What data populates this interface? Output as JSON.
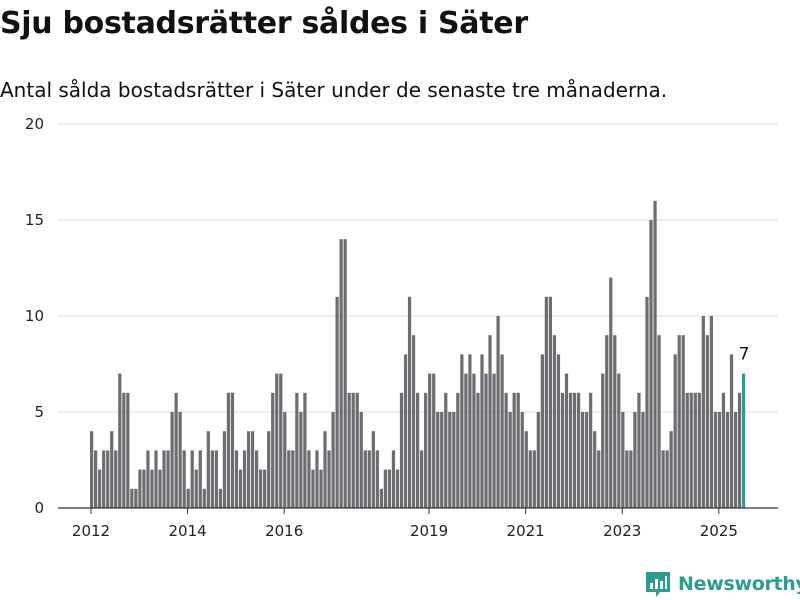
{
  "title": "Sju bostadsrätter såldes i Säter",
  "subtitle": "Antal sålda bostadsrätter i Säter under de senaste tre månaderna.",
  "brand": {
    "name": "Newsworthy",
    "color": "#2a9d8f",
    "icon": "newsworthy-logo-icon"
  },
  "colors": {
    "bar": "#6d6c70",
    "highlight": "#2a9d8f",
    "grid": "#dddddd",
    "axis": "#333333"
  },
  "chart_data": {
    "type": "bar",
    "title": "Sju bostadsrätter såldes i Säter",
    "subtitle": "Antal sålda bostadsrätter i Säter under de senaste tre månaderna.",
    "xlabel": "",
    "ylabel": "",
    "ylim": [
      0,
      20
    ],
    "yticks": [
      0,
      5,
      10,
      15,
      20
    ],
    "xticks": [
      "2012",
      "2014",
      "2016",
      "2019",
      "2021",
      "2023",
      "2025"
    ],
    "grid": "horizontal",
    "x_start": "2012-01",
    "x_end": "2025-07",
    "highlight_index": 162,
    "last_label": "7",
    "values": [
      4,
      3,
      2,
      3,
      3,
      4,
      3,
      7,
      6,
      6,
      1,
      1,
      2,
      2,
      3,
      2,
      3,
      2,
      3,
      3,
      5,
      6,
      5,
      3,
      1,
      3,
      2,
      3,
      1,
      4,
      3,
      3,
      1,
      4,
      6,
      6,
      3,
      2,
      3,
      4,
      4,
      3,
      2,
      2,
      4,
      6,
      7,
      7,
      5,
      3,
      3,
      6,
      5,
      6,
      3,
      2,
      3,
      2,
      4,
      3,
      5,
      11,
      14,
      14,
      6,
      6,
      6,
      5,
      3,
      3,
      4,
      3,
      1,
      2,
      2,
      3,
      2,
      6,
      8,
      11,
      9,
      6,
      3,
      6,
      7,
      7,
      5,
      5,
      6,
      5,
      5,
      6,
      8,
      7,
      8,
      7,
      6,
      8,
      7,
      9,
      7,
      10,
      8,
      6,
      5,
      6,
      6,
      5,
      4,
      3,
      3,
      5,
      8,
      11,
      11,
      9,
      8,
      6,
      7,
      6,
      6,
      6,
      5,
      5,
      6,
      4,
      3,
      7,
      9,
      12,
      9,
      7,
      5,
      3,
      3,
      5,
      6,
      5,
      11,
      15,
      16,
      9,
      3,
      3,
      4,
      8,
      9,
      9,
      6,
      6,
      6,
      6,
      10,
      9,
      10,
      5,
      5,
      6,
      5,
      8,
      5,
      6,
      7
    ]
  }
}
